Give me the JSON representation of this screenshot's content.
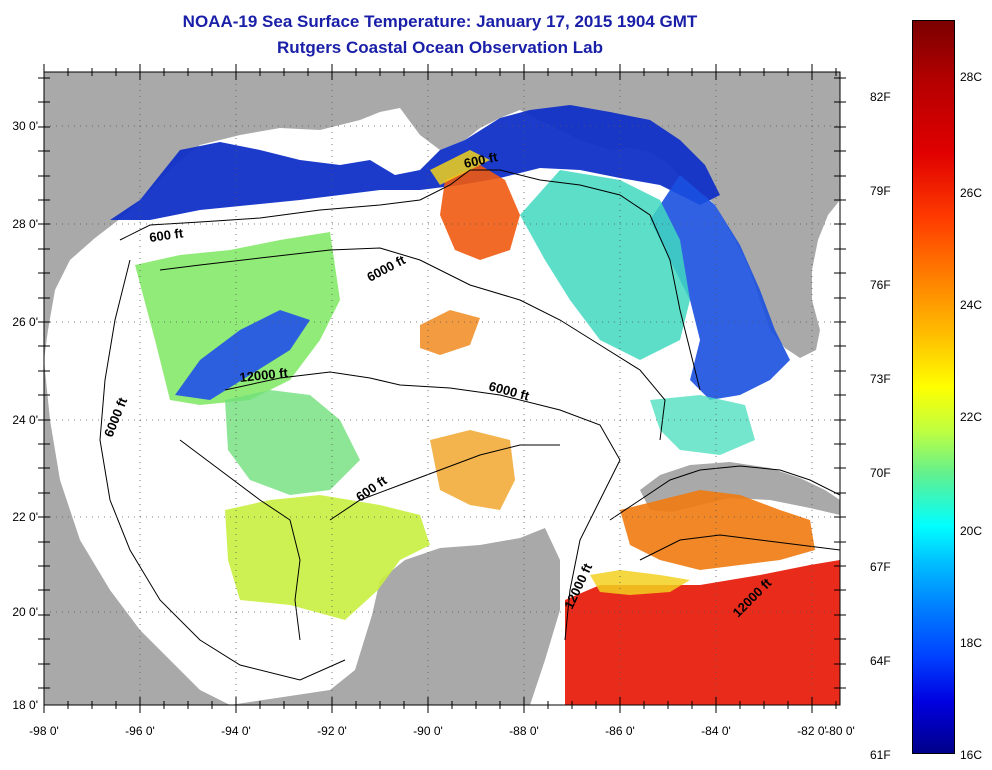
{
  "title_line1": "NOAA-19 Sea Surface Temperature:  January 17, 2015 1904 GMT",
  "title_line2": "Rutgers Coastal Ocean Observation Lab",
  "lon_labels": [
    "-98 0'",
    "-96 0'",
    "-94 0'",
    "-92 0'",
    "-90 0'",
    "-88 0'",
    "-86 0'",
    "-84 0'",
    "-82 0'",
    "-80 0'"
  ],
  "lat_labels": [
    "30 0'",
    "28 0'",
    "26 0'",
    "24 0'",
    "22 0'",
    "20 0'",
    "18 0'"
  ],
  "contour_labels": [
    "600 ft",
    "600 ft",
    "6000 ft",
    "6000 ft",
    "12000 ft",
    "6000 ft",
    "600 ft",
    "12000 ft",
    "12000 ft"
  ],
  "colorbar": {
    "fahrenheit": [
      "82F",
      "79F",
      "76F",
      "73F",
      "70F",
      "67F",
      "64F",
      "61F"
    ],
    "celsius": [
      "28C",
      "26C",
      "24C",
      "22C",
      "20C",
      "18C",
      "16C"
    ]
  },
  "colors": {
    "land": "#a9a9a9",
    "ocean_nodata": "#ffffff",
    "title": "#1a1fa8"
  }
}
